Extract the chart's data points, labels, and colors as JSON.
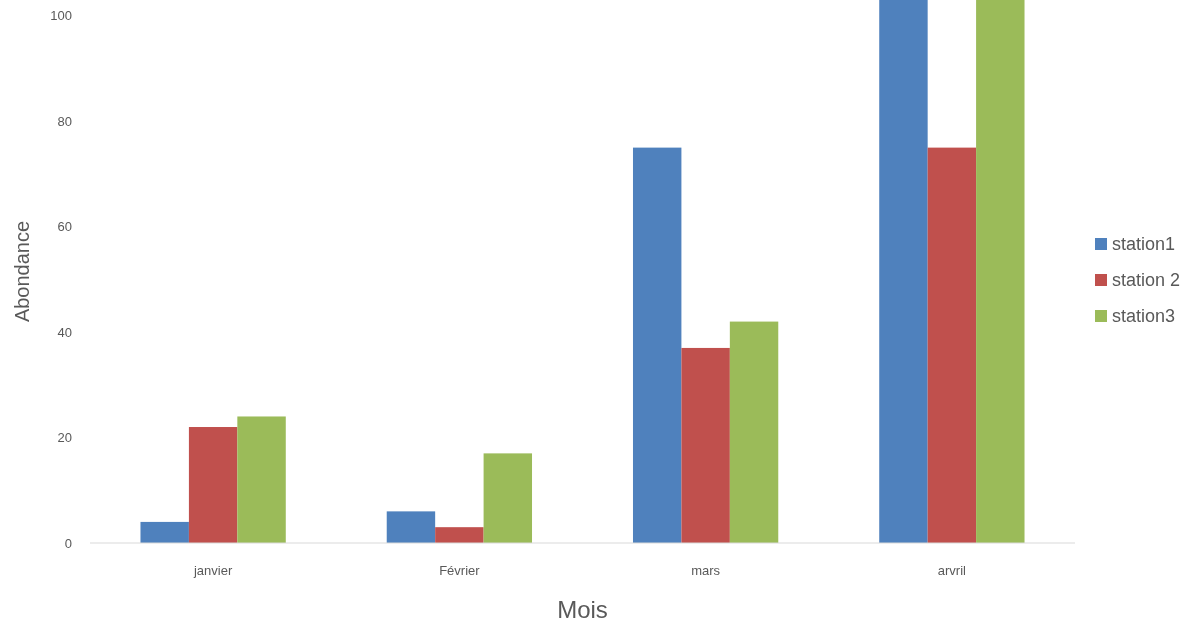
{
  "chart_data": {
    "type": "bar",
    "xlabel": "Mois",
    "ylabel": "Abondance",
    "categories": [
      "janvier",
      "Février",
      "mars",
      "arvril"
    ],
    "series": [
      {
        "name": "station1",
        "color": "#4f81bd",
        "values": [
          4,
          6,
          75,
          103
        ]
      },
      {
        "name": "station 2",
        "color": "#c0504d",
        "values": [
          22,
          3,
          37,
          75
        ]
      },
      {
        "name": "station3",
        "color": "#9bbb59",
        "values": [
          24,
          17,
          42,
          103
        ]
      }
    ],
    "ylim": [
      0,
      103
    ],
    "yticks": [
      0,
      20,
      40,
      60,
      80,
      100
    ],
    "legend": "right",
    "grid": false
  }
}
